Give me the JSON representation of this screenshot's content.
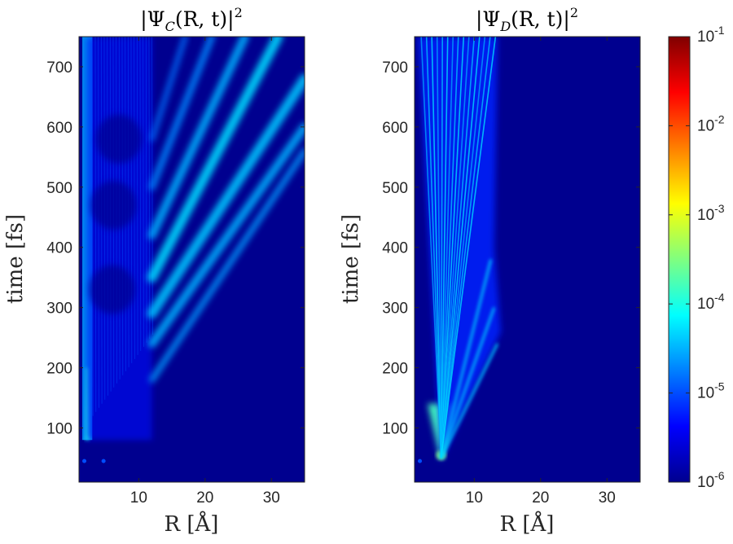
{
  "chart_data": [
    {
      "type": "heatmap",
      "title": "|Ψ_C(R,t)|²",
      "title_parts": {
        "pre": "|Ψ",
        "sub": "C",
        "mid": "(R, t)|",
        "sup": "2"
      },
      "xlabel": "R [Å]",
      "ylabel": "time [fs]",
      "xlim": [
        1,
        35
      ],
      "ylim": [
        10,
        750
      ],
      "xticks": [
        10,
        20,
        30
      ],
      "yticks": [
        100,
        200,
        300,
        400,
        500,
        600,
        700
      ],
      "features": [
        {
          "name": "vibrational packet near R≈2 Å",
          "R": [
            1.5,
            3.0
          ],
          "t": [
            80,
            750
          ],
          "log10_density": -4.5
        },
        {
          "name": "oscillating region R 2–12 Å",
          "R": [
            2,
            12
          ],
          "t": [
            80,
            750
          ],
          "log10_density": -5.3
        },
        {
          "name": "outgoing dissociating streaks",
          "R": [
            12,
            35
          ],
          "t": [
            180,
            750
          ],
          "log10_density": -4.8
        },
        {
          "name": "small spots at t≈45 fs",
          "R": [
            1.8,
            4.7
          ],
          "t": [
            45,
            45
          ],
          "log10_density": -5.0
        }
      ]
    },
    {
      "type": "heatmap",
      "title": "|Ψ_D(R,t)|²",
      "title_parts": {
        "pre": "|Ψ",
        "sub": "D",
        "mid": "(R, t)|",
        "sup": "2"
      },
      "xlabel": "R [Å]",
      "ylabel": "time [fs]",
      "xlim": [
        1,
        35
      ],
      "ylim": [
        10,
        750
      ],
      "xticks": [
        10,
        20,
        30
      ],
      "yticks": [
        100,
        200,
        300,
        400,
        500,
        600,
        700
      ],
      "features": [
        {
          "name": "source at R≈5 Å, t≈45 fs",
          "R": [
            4.5,
            5.5
          ],
          "t": [
            45,
            100
          ],
          "log10_density": -3.5
        },
        {
          "name": "fan of trajectories R 2–14 Å",
          "R": [
            2,
            14
          ],
          "t": [
            45,
            750
          ],
          "log10_density": -4.6
        }
      ]
    }
  ],
  "colorbar": {
    "scale": "log",
    "range": [
      1e-06,
      0.1
    ],
    "ticks": [
      {
        "base": "10",
        "exp": "-1"
      },
      {
        "base": "10",
        "exp": "-2"
      },
      {
        "base": "10",
        "exp": "-3"
      },
      {
        "base": "10",
        "exp": "-4"
      },
      {
        "base": "10",
        "exp": "-5"
      },
      {
        "base": "10",
        "exp": "-6"
      }
    ],
    "colormap": "jet"
  },
  "colors": {
    "background": "#00008f",
    "axis": "#262626"
  }
}
